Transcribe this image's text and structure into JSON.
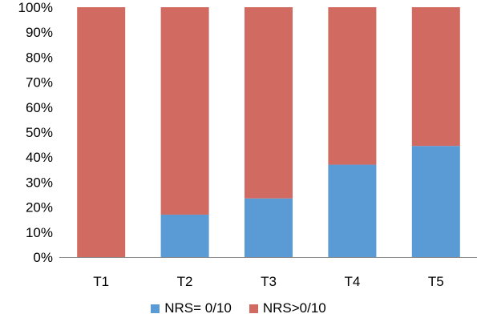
{
  "chart_data": {
    "type": "bar",
    "stacked": true,
    "percent": true,
    "categories": [
      "T1",
      "T2",
      "T3",
      "T4",
      "T5"
    ],
    "series": [
      {
        "name": "NRS= 0/10",
        "color": "#5b9bd5",
        "values": [
          0,
          17,
          23.5,
          37,
          44.5
        ]
      },
      {
        "name": "NRS>0/10",
        "color": "#d16b61",
        "values": [
          100,
          83,
          76.5,
          63,
          55.5
        ]
      }
    ],
    "ylim": [
      0,
      100
    ],
    "yticks": [
      "0%",
      "10%",
      "20%",
      "30%",
      "40%",
      "50%",
      "60%",
      "70%",
      "80%",
      "90%",
      "100%"
    ],
    "grid": false,
    "legend_position": "bottom"
  }
}
